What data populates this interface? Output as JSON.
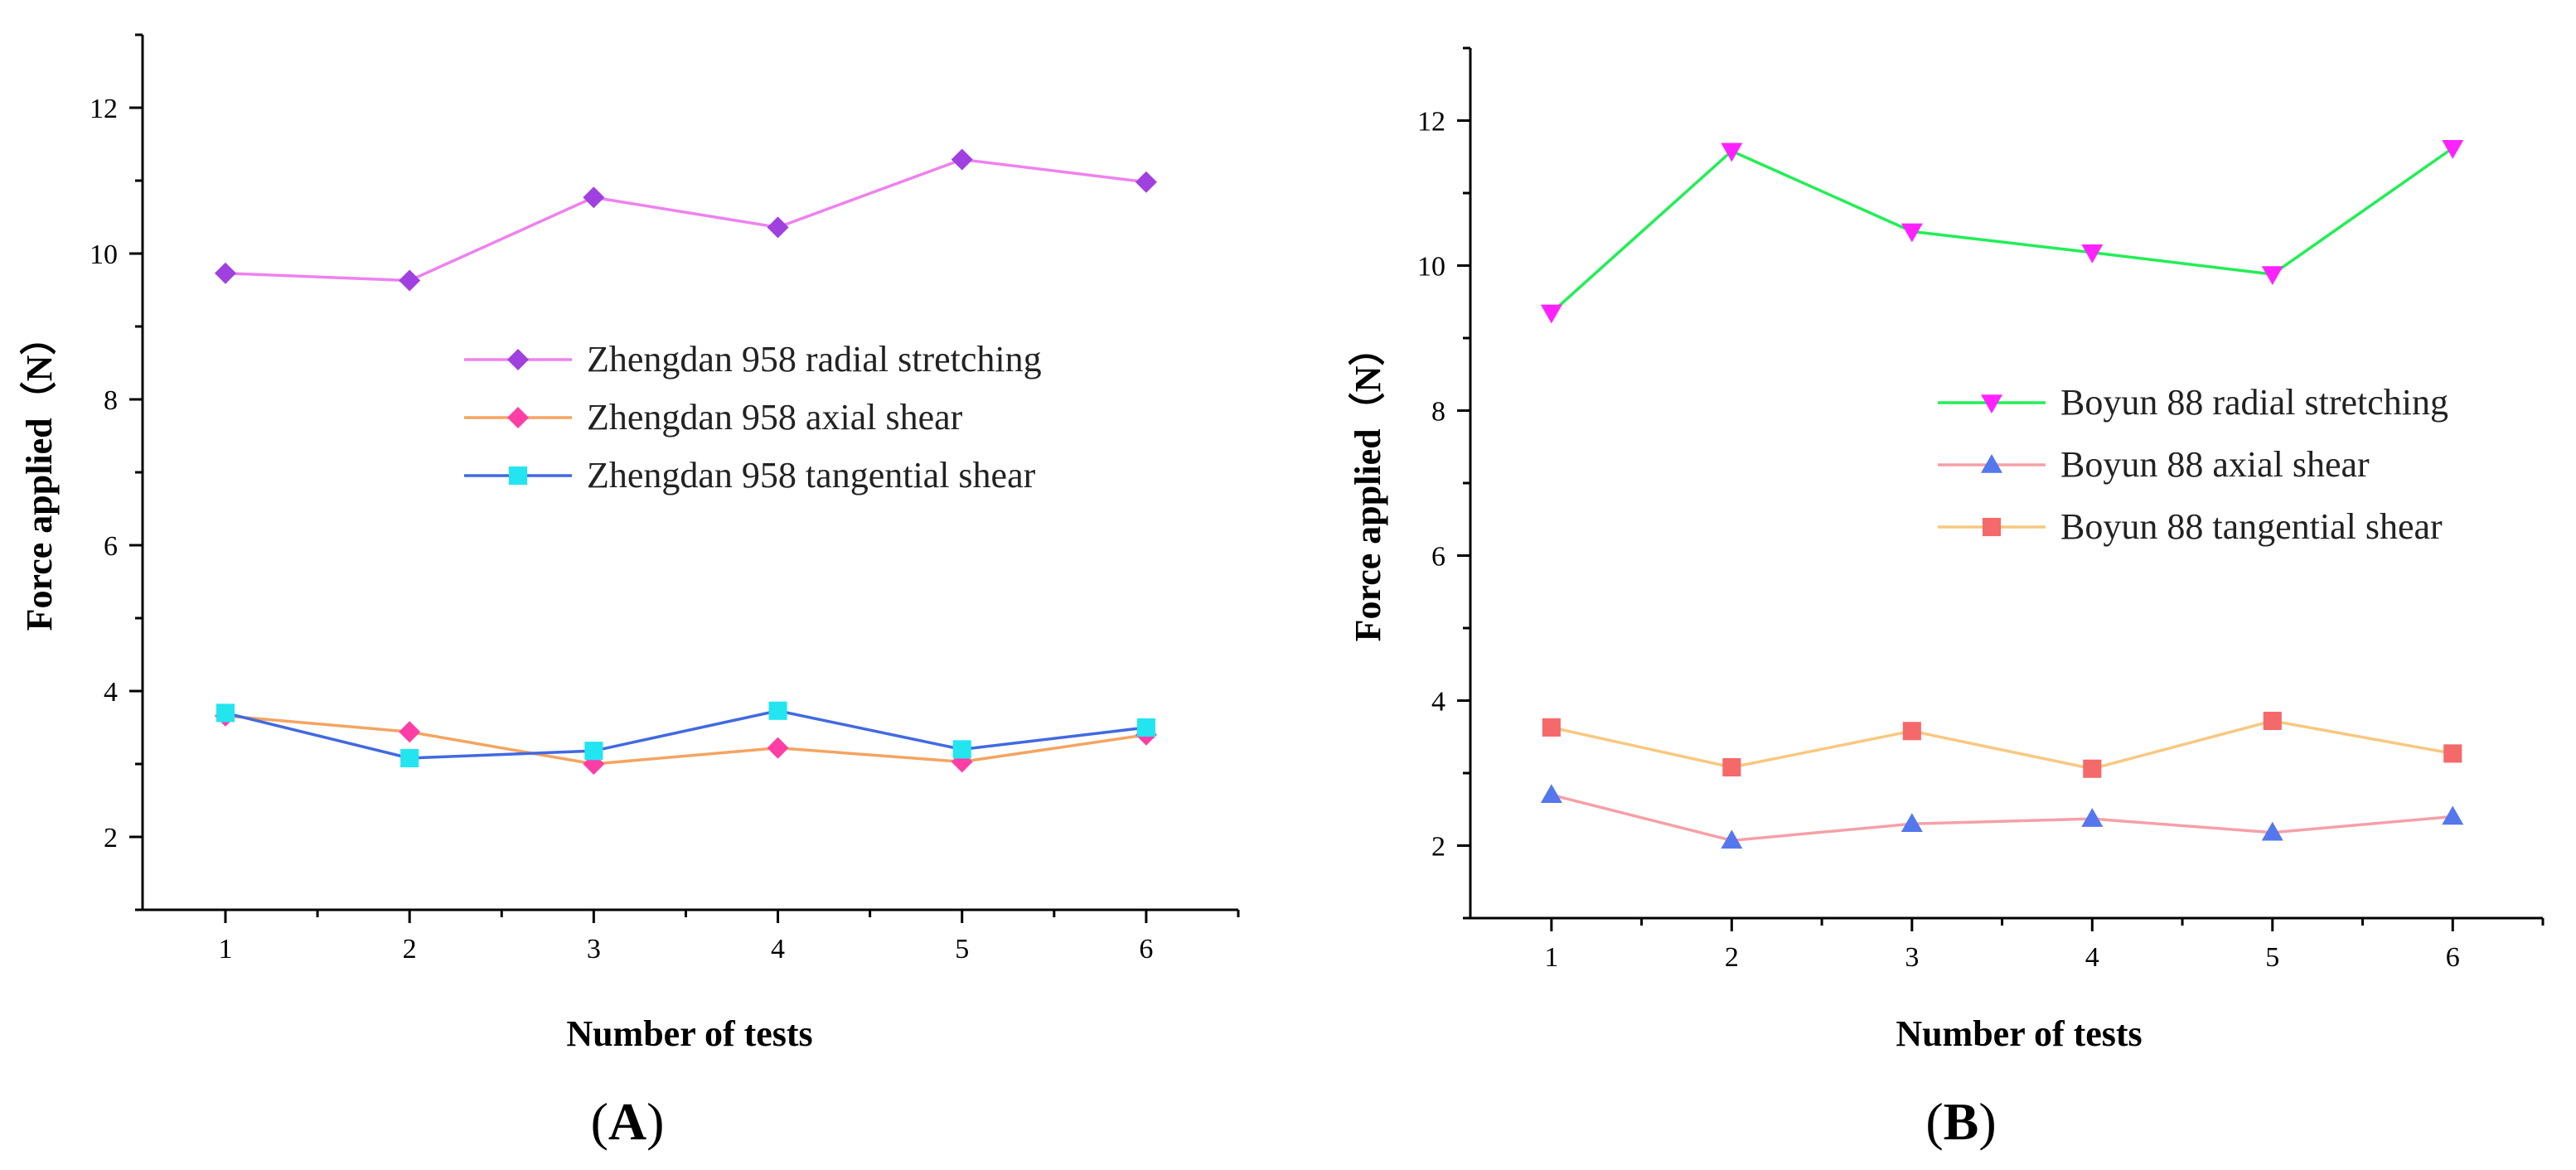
{
  "chart_data": [
    {
      "type": "line",
      "panel_label": "A",
      "xlabel": "Number of tests",
      "ylabel": "Force applied（N）",
      "x": [
        1,
        2,
        3,
        4,
        5,
        6
      ],
      "xlim": [
        0.55,
        6.5
      ],
      "ylim": [
        1,
        13
      ],
      "xticks": [
        1,
        2,
        3,
        4,
        5,
        6
      ],
      "yticks": [
        2,
        4,
        6,
        8,
        10,
        12
      ],
      "legend_position": "center-right",
      "series": [
        {
          "name": "Zhengdan 958 radial stretching",
          "values": [
            9.73,
            9.63,
            10.77,
            10.36,
            11.29,
            10.98
          ],
          "color": "#ee82ee",
          "marker_color": "#a040e0",
          "marker": "diamond"
        },
        {
          "name": "Zhengdan 958 axial shear",
          "values": [
            3.66,
            3.44,
            3.0,
            3.22,
            3.03,
            3.4
          ],
          "color": "#f4a460",
          "marker_color": "#ff3ea5",
          "marker": "diamond"
        },
        {
          "name": "Zhengdan 958 tangential shear",
          "values": [
            3.7,
            3.08,
            3.18,
            3.73,
            3.2,
            3.5
          ],
          "color": "#4169e1",
          "marker_color": "#22e5f0",
          "marker": "square"
        }
      ]
    },
    {
      "type": "line",
      "panel_label": "B",
      "xlabel": "Number of tests",
      "ylabel": "Force applied（N）",
      "x": [
        1,
        2,
        3,
        4,
        5,
        6
      ],
      "xlim": [
        0.55,
        6.5
      ],
      "ylim": [
        1,
        13
      ],
      "xticks": [
        1,
        2,
        3,
        4,
        5,
        6
      ],
      "yticks": [
        2,
        4,
        6,
        8,
        10,
        12
      ],
      "legend_position": "center-right",
      "series": [
        {
          "name": "Boyun 88 radial stretching",
          "values": [
            9.35,
            11.58,
            10.47,
            10.18,
            9.88,
            11.62
          ],
          "color": "#22ee55",
          "marker_color": "#ff22ff",
          "marker": "triangle-down"
        },
        {
          "name": "Boyun 88 axial shear",
          "values": [
            2.7,
            2.07,
            2.3,
            2.37,
            2.18,
            2.4
          ],
          "color": "#f5a0a8",
          "marker_color": "#5577ee",
          "marker": "triangle-up"
        },
        {
          "name": "Boyun 88 tangential shear",
          "values": [
            3.63,
            3.08,
            3.58,
            3.06,
            3.72,
            3.27
          ],
          "color": "#f8c880",
          "marker_color": "#f46a6a",
          "marker": "square"
        }
      ]
    }
  ]
}
